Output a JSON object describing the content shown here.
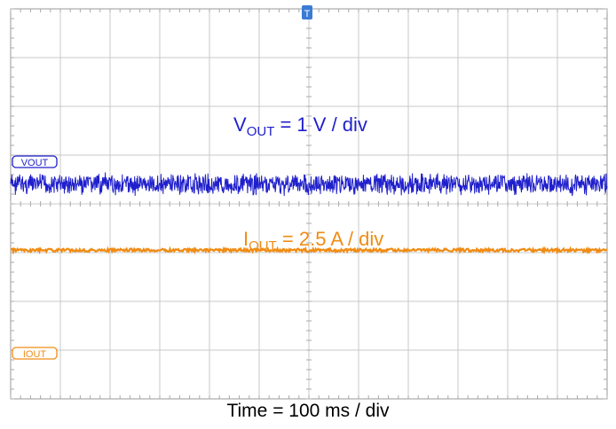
{
  "chart_data": {
    "type": "line",
    "title": "",
    "x": {
      "divisions": 12,
      "per_div": "100 ms"
    },
    "y": {
      "divisions": 8
    },
    "grid": true,
    "trigger_marker": "T",
    "series": [
      {
        "name": "VOUT",
        "color": "#1f1fcc",
        "level_div": 3.6,
        "noise_div": 0.25,
        "amplitude": "1 V / div"
      },
      {
        "name": "IOUT",
        "color": "#f08c14",
        "level_div": 4.95,
        "noise_div": 0.03,
        "amplitude": "2.5 A / div"
      }
    ],
    "annotations": {
      "vout_main": "V",
      "vout_sub": "OUT",
      "vout_rest": " = 1 V / div",
      "iout_main": "I",
      "iout_sub": "OUT",
      "iout_rest": " = 2.5 A / div"
    },
    "channel_tags": {
      "ch1": "VOUT",
      "ch2": "IOUT"
    },
    "xlabel": "Time = 100 ms / div",
    "colors": {
      "vout": "#1f1fcc",
      "iout": "#f08c14",
      "grid": "#c8c8c8",
      "trigger": "#3a7bd5"
    }
  }
}
